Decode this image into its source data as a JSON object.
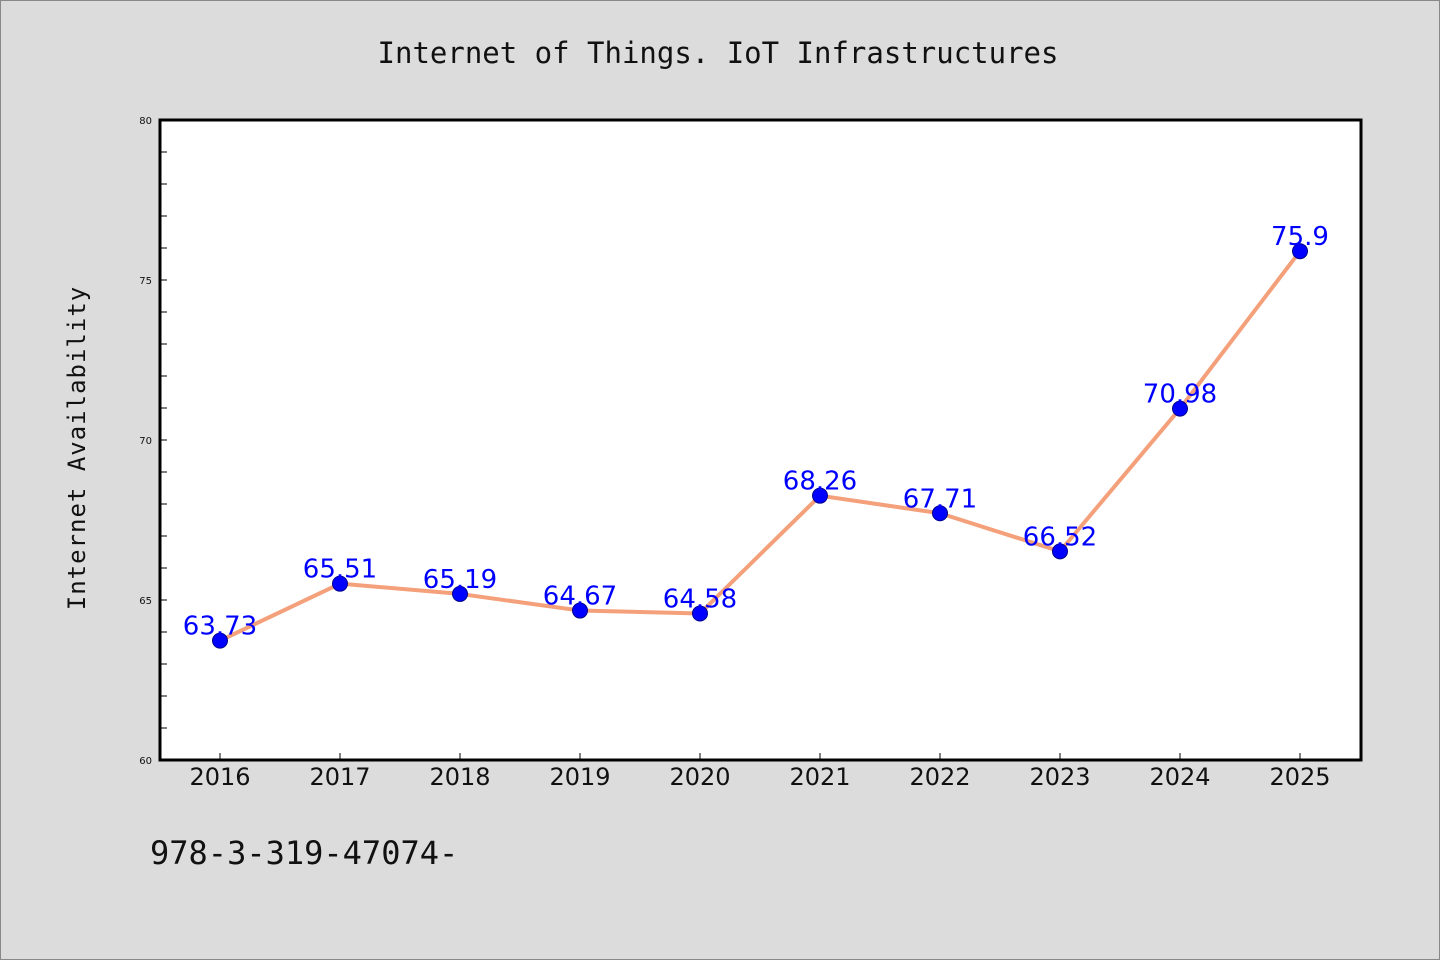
{
  "chart_data": {
    "type": "line",
    "title": "Internet of Things. IoT Infrastructures",
    "xlabel": "",
    "ylabel": "Internet Availability",
    "categories": [
      "2016",
      "2017",
      "2018",
      "2019",
      "2020",
      "2021",
      "2022",
      "2023",
      "2024",
      "2025"
    ],
    "series": [
      {
        "values": [
          63.73,
          65.51,
          65.19,
          64.67,
          64.58,
          68.26,
          67.71,
          66.52,
          70.98,
          75.9
        ],
        "labels": [
          "63.73",
          "65.51",
          "65.19",
          "64.67",
          "64.58",
          "68.26",
          "67.71",
          "66.52",
          "70.98",
          "75.9"
        ],
        "line_color": "#f4a07a",
        "marker_color": "#0000ff"
      }
    ],
    "ylim": [
      60,
      80
    ],
    "yticks": [
      "60",
      "65",
      "70",
      "75",
      "80"
    ],
    "grid": false,
    "legend": "none"
  },
  "footer": {
    "text": "978-3-319-47074-"
  },
  "colors": {
    "background": "#dcdcdc",
    "plot_background": "#ffffff",
    "line": "#f4a07a",
    "marker": "#0000ff",
    "data_label": "#0000ff"
  }
}
